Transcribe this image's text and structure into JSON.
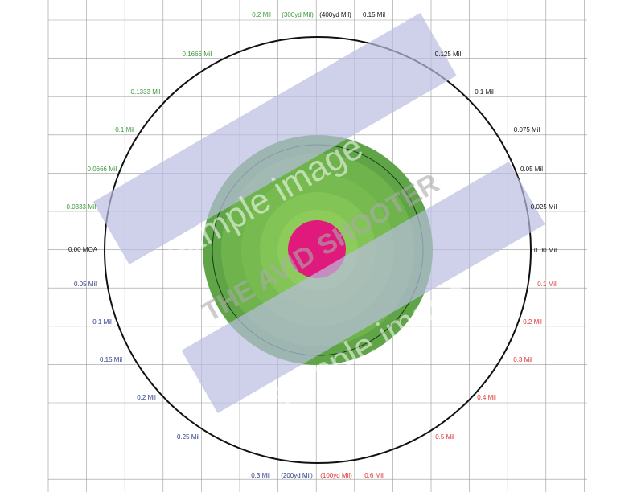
{
  "labels": [
    "0.2 Mil",
    "(300yd Mil)",
    "(400yd Mil)",
    "0.15 Mil",
    "0.1666 Mil",
    "0.1333 Mil",
    "0.1 Mil",
    "0.0666 Mil",
    "0.0333 Mil",
    "0.125 Mil",
    "0.1 Mil",
    "0.075 Mil",
    "0.05 Mil",
    "0.025 Mil",
    "0.00 Mil",
    "0.00 MOA",
    "0.05 Mil",
    "0.1 Mil",
    "0.15 Mil",
    "0.2 Mil",
    "0.25 Mil",
    "0.1 Mil",
    "0.2 Mil",
    "0.3 Mil",
    "0.4 Mil",
    "0.5 Mil",
    "0.3 Mil",
    "(200yd Mil)",
    "(100yd Mil)",
    "0.6 Mil"
  ],
  "watermark": [
    "sample image",
    "THE AVID SHOOTER"
  ]
}
